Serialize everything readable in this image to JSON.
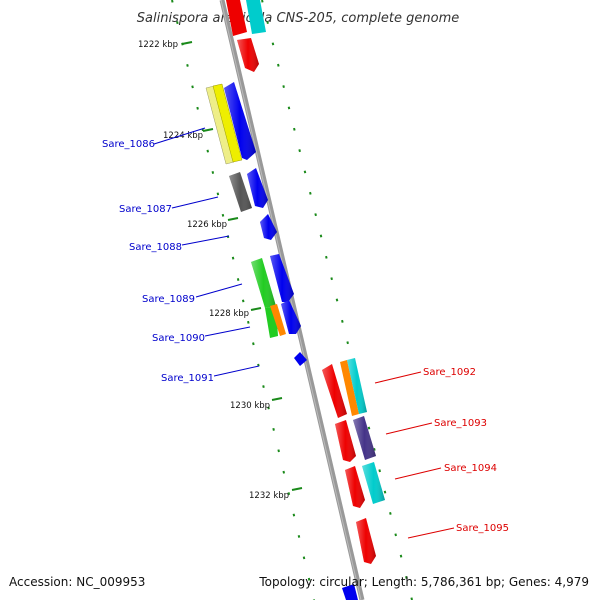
{
  "title": "Salinispora arenicola CNS-205, complete genome",
  "footer": {
    "accession": "Accession: NC_009953",
    "topology": "Topology: circular; Length: 5,786,361 bp; Genes: 4,979"
  },
  "kbp_labels": [
    "1222 kbp",
    "1224 kbp",
    "1226 kbp",
    "1228 kbp",
    "1230 kbp",
    "1232 kbp"
  ],
  "genes_left": [
    "Sare_1086",
    "Sare_1087",
    "Sare_1088",
    "Sare_1089",
    "Sare_1090",
    "Sare_1091"
  ],
  "genes_right": [
    "Sare_1092",
    "Sare_1093",
    "Sare_1094",
    "Sare_1095"
  ],
  "colors": {
    "backbone": "#888888",
    "tick": "#1a8a1a",
    "left_label": "#0000cc",
    "right_label": "#dd0000",
    "red": "#ee0000",
    "blue": "#0000ee",
    "cyan": "#00cccc",
    "yellow": "#eeee00",
    "grey": "#555555",
    "green": "#22cc22",
    "orange": "#ff8800",
    "purple": "#443388"
  }
}
